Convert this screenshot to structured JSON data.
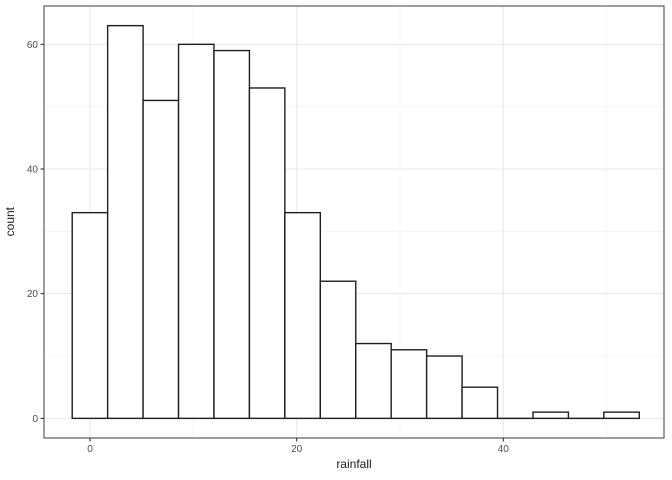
{
  "chart_data": {
    "type": "bar",
    "subtype": "histogram",
    "title": "",
    "xlabel": "rainfall",
    "ylabel": "count",
    "bin_width": 3.43,
    "bins": [
      {
        "x0": -1.72,
        "x1": 1.71,
        "count": 33
      },
      {
        "x0": 1.71,
        "x1": 5.14,
        "count": 63
      },
      {
        "x0": 5.14,
        "x1": 8.57,
        "count": 51
      },
      {
        "x0": 8.57,
        "x1": 12.0,
        "count": 60
      },
      {
        "x0": 12.0,
        "x1": 15.43,
        "count": 59
      },
      {
        "x0": 15.43,
        "x1": 18.86,
        "count": 53
      },
      {
        "x0": 18.86,
        "x1": 22.29,
        "count": 33
      },
      {
        "x0": 22.29,
        "x1": 25.72,
        "count": 22
      },
      {
        "x0": 25.72,
        "x1": 29.15,
        "count": 12
      },
      {
        "x0": 29.15,
        "x1": 32.58,
        "count": 11
      },
      {
        "x0": 32.58,
        "x1": 36.01,
        "count": 10
      },
      {
        "x0": 36.01,
        "x1": 39.44,
        "count": 5
      },
      {
        "x0": 39.44,
        "x1": 42.87,
        "count": 0
      },
      {
        "x0": 42.87,
        "x1": 46.3,
        "count": 1
      },
      {
        "x0": 46.3,
        "x1": 49.73,
        "count": 0
      },
      {
        "x0": 49.73,
        "x1": 53.16,
        "count": 1
      }
    ],
    "x_ticks": [
      {
        "value": 0,
        "label": "0"
      },
      {
        "value": 20,
        "label": "20"
      },
      {
        "value": 40,
        "label": "40"
      }
    ],
    "y_ticks": [
      {
        "value": 0,
        "label": "0"
      },
      {
        "value": 20,
        "label": "20"
      },
      {
        "value": 40,
        "label": "40"
      },
      {
        "value": 60,
        "label": "60"
      }
    ],
    "x_minor_ticks": [
      10,
      30,
      50
    ],
    "y_minor_ticks": [
      10,
      30,
      50
    ],
    "xlim": [
      -4.45,
      55.55
    ],
    "ylim": [
      -3.15,
      66.15
    ],
    "grid": {
      "major": true,
      "minor": true
    },
    "legend": "none",
    "colors": {
      "background": "#ffffff",
      "panel_background": "#ffffff",
      "panel_border": "#5c5c5c",
      "grid_major": "#e9e9e9",
      "grid_minor": "#f4f4f4",
      "bar_fill": "#ffffff",
      "bar_stroke": "#1f1f1f",
      "tick_mark": "#333333",
      "tick_label": "#4d4d4d",
      "axis_title": "#1a1a1a"
    }
  }
}
